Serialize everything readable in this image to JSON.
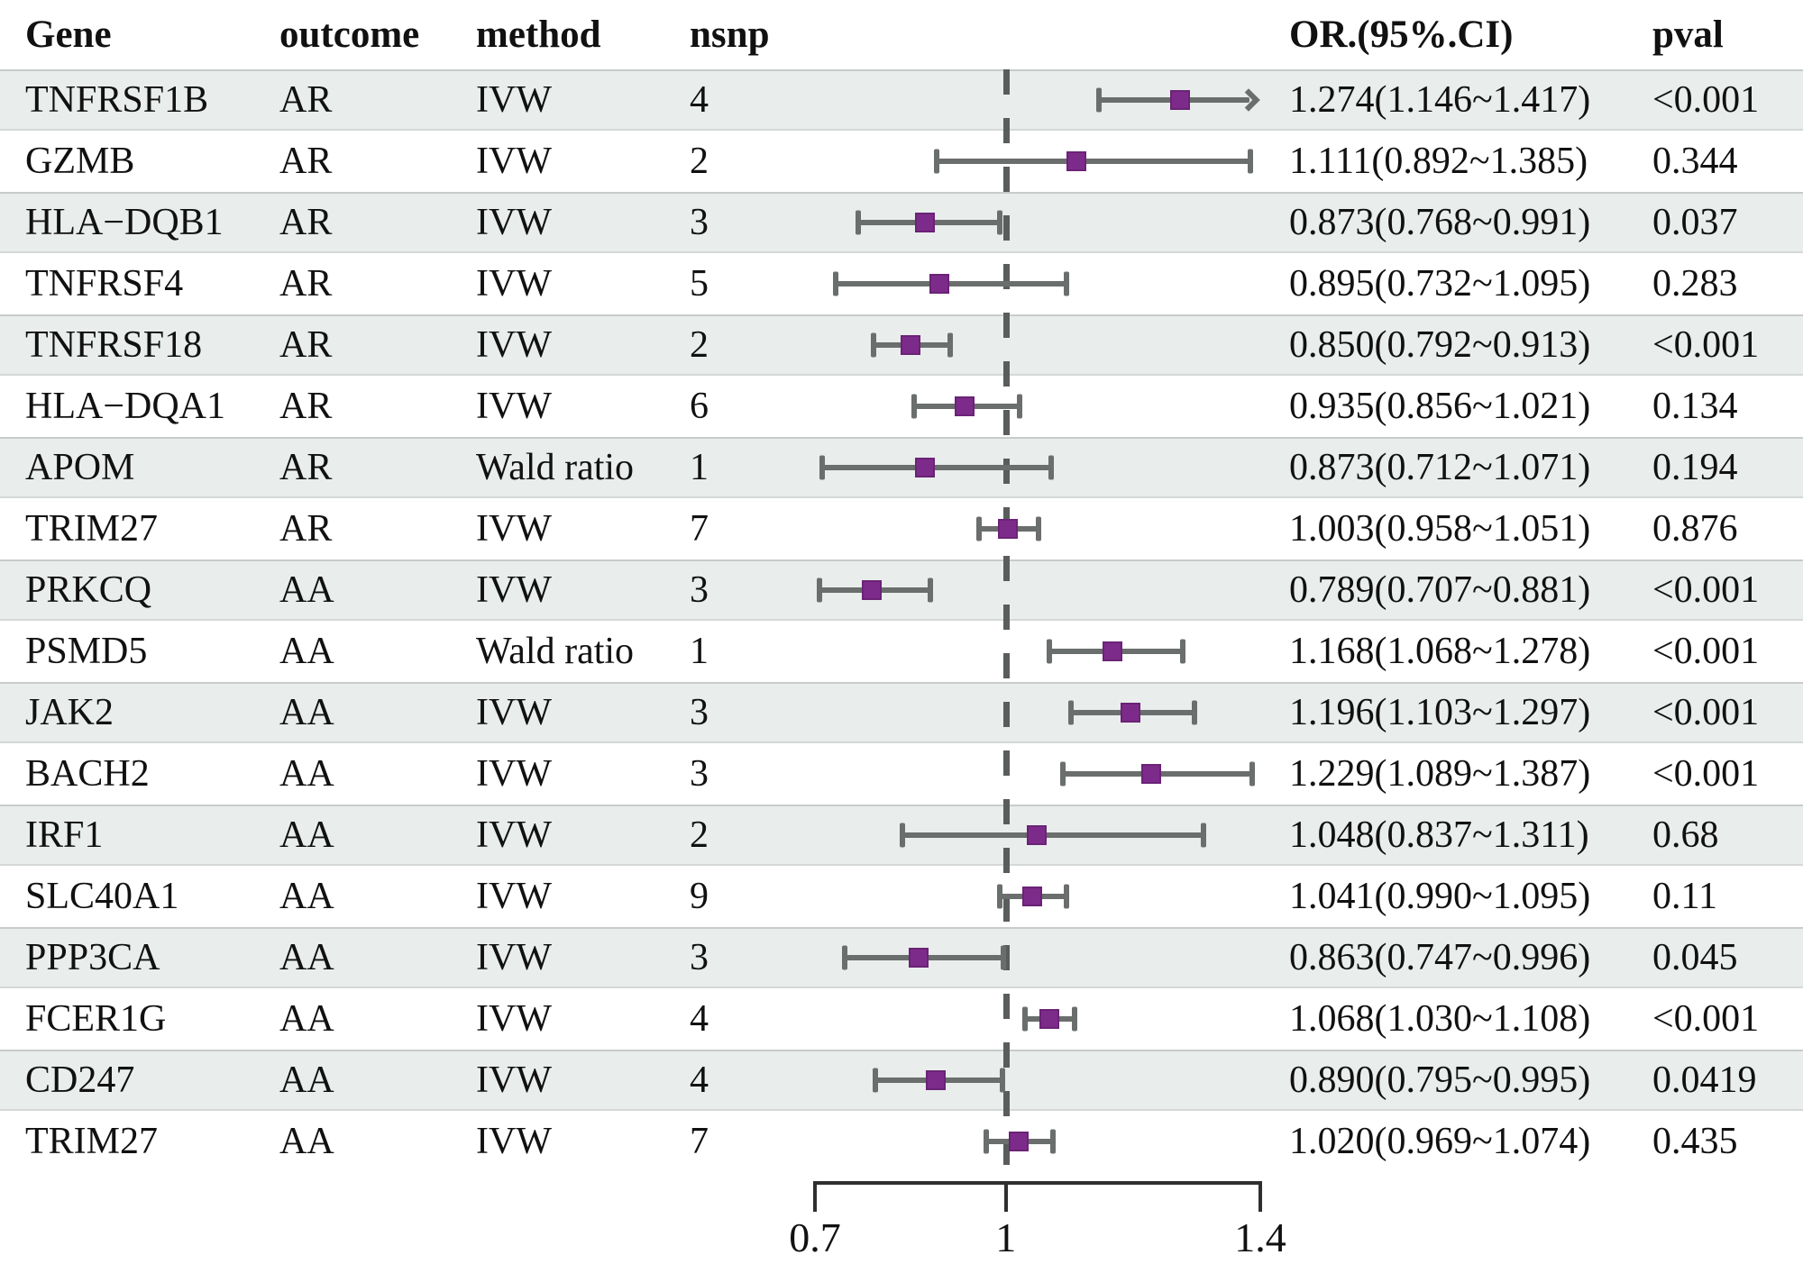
{
  "header": {
    "gene": "Gene",
    "outcome": "outcome",
    "method": "method",
    "nsnp": "nsnp",
    "or_ci": "OR.(95%.CI)",
    "pval": "pval"
  },
  "chart_data": {
    "type": "forest",
    "title": "",
    "x_axis": {
      "scale": "linear",
      "min": 0.7,
      "max": 1.4,
      "tick_values": [
        0.7,
        1,
        1.4
      ],
      "tick_labels": [
        "0.7",
        "1",
        "1.4"
      ],
      "reference_line": 1
    },
    "columns": [
      "Gene",
      "outcome",
      "method",
      "nsnp",
      "OR.(95%.CI)",
      "pval"
    ],
    "rows": [
      {
        "gene": "TNFRSF1B",
        "outcome": "AR",
        "method": "IVW",
        "nsnp": "4",
        "or": 1.274,
        "lo": 1.146,
        "hi": 1.417,
        "or_ci": "1.274(1.146~1.417)",
        "pval": "<0.001"
      },
      {
        "gene": "GZMB",
        "outcome": "AR",
        "method": "IVW",
        "nsnp": "2",
        "or": 1.111,
        "lo": 0.892,
        "hi": 1.385,
        "or_ci": "1.111(0.892~1.385)",
        "pval": "0.344"
      },
      {
        "gene": "HLA−DQB1",
        "outcome": "AR",
        "method": "IVW",
        "nsnp": "3",
        "or": 0.873,
        "lo": 0.768,
        "hi": 0.991,
        "or_ci": "0.873(0.768~0.991)",
        "pval": "0.037"
      },
      {
        "gene": "TNFRSF4",
        "outcome": "AR",
        "method": "IVW",
        "nsnp": "5",
        "or": 0.895,
        "lo": 0.732,
        "hi": 1.095,
        "or_ci": "0.895(0.732~1.095)",
        "pval": "0.283"
      },
      {
        "gene": "TNFRSF18",
        "outcome": "AR",
        "method": "IVW",
        "nsnp": "2",
        "or": 0.85,
        "lo": 0.792,
        "hi": 0.913,
        "or_ci": "0.850(0.792~0.913)",
        "pval": "<0.001"
      },
      {
        "gene": "HLA−DQA1",
        "outcome": "AR",
        "method": "IVW",
        "nsnp": "6",
        "or": 0.935,
        "lo": 0.856,
        "hi": 1.021,
        "or_ci": "0.935(0.856~1.021)",
        "pval": "0.134"
      },
      {
        "gene": "APOM",
        "outcome": "AR",
        "method": "Wald ratio",
        "nsnp": "1",
        "or": 0.873,
        "lo": 0.712,
        "hi": 1.071,
        "or_ci": "0.873(0.712~1.071)",
        "pval": "0.194"
      },
      {
        "gene": "TRIM27",
        "outcome": "AR",
        "method": "IVW",
        "nsnp": "7",
        "or": 1.003,
        "lo": 0.958,
        "hi": 1.051,
        "or_ci": "1.003(0.958~1.051)",
        "pval": "0.876"
      },
      {
        "gene": "PRKCQ",
        "outcome": "AA",
        "method": "IVW",
        "nsnp": "3",
        "or": 0.789,
        "lo": 0.707,
        "hi": 0.881,
        "or_ci": "0.789(0.707~0.881)",
        "pval": "<0.001"
      },
      {
        "gene": "PSMD5",
        "outcome": "AA",
        "method": "Wald ratio",
        "nsnp": "1",
        "or": 1.168,
        "lo": 1.068,
        "hi": 1.278,
        "or_ci": "1.168(1.068~1.278)",
        "pval": "<0.001"
      },
      {
        "gene": "JAK2",
        "outcome": "AA",
        "method": "IVW",
        "nsnp": "3",
        "or": 1.196,
        "lo": 1.103,
        "hi": 1.297,
        "or_ci": "1.196(1.103~1.297)",
        "pval": "<0.001"
      },
      {
        "gene": "BACH2",
        "outcome": "AA",
        "method": "IVW",
        "nsnp": "3",
        "or": 1.229,
        "lo": 1.089,
        "hi": 1.387,
        "or_ci": "1.229(1.089~1.387)",
        "pval": "<0.001"
      },
      {
        "gene": "IRF1",
        "outcome": "AA",
        "method": "IVW",
        "nsnp": "2",
        "or": 1.048,
        "lo": 0.837,
        "hi": 1.311,
        "or_ci": "1.048(0.837~1.311)",
        "pval": "0.68"
      },
      {
        "gene": "SLC40A1",
        "outcome": "AA",
        "method": "IVW",
        "nsnp": "9",
        "or": 1.041,
        "lo": 0.99,
        "hi": 1.095,
        "or_ci": "1.041(0.990~1.095)",
        "pval": "0.11"
      },
      {
        "gene": "PPP3CA",
        "outcome": "AA",
        "method": "IVW",
        "nsnp": "3",
        "or": 0.863,
        "lo": 0.747,
        "hi": 0.996,
        "or_ci": "0.863(0.747~0.996)",
        "pval": "0.045"
      },
      {
        "gene": "FCER1G",
        "outcome": "AA",
        "method": "IVW",
        "nsnp": "4",
        "or": 1.068,
        "lo": 1.03,
        "hi": 1.108,
        "or_ci": "1.068(1.030~1.108)",
        "pval": "<0.001"
      },
      {
        "gene": "CD247",
        "outcome": "AA",
        "method": "IVW",
        "nsnp": "4",
        "or": 0.89,
        "lo": 0.795,
        "hi": 0.995,
        "or_ci": "0.890(0.795~0.995)",
        "pval": "0.0419"
      },
      {
        "gene": "TRIM27",
        "outcome": "AA",
        "method": "IVW",
        "nsnp": "7",
        "or": 1.02,
        "lo": 0.969,
        "hi": 1.074,
        "or_ci": "1.020(0.969~1.074)",
        "pval": "0.435"
      }
    ],
    "layout": {
      "grid": "off",
      "legend": "none",
      "row_stripe_color": "#e9edec",
      "marker_color": "#7d2b8a",
      "ci_bar_color": "#6a6e6c",
      "reference_dash_color": "#595d5b",
      "axis_color": "#2f2f2f"
    }
  }
}
